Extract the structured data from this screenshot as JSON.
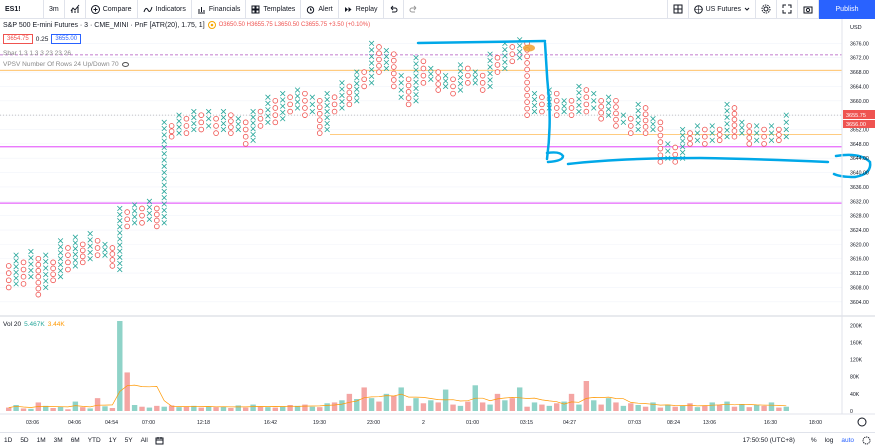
{
  "toolbar": {
    "symbol": "ES1!",
    "interval": "3m",
    "compare": "Compare",
    "indicators": "Indicators",
    "financials": "Financials",
    "templates": "Templates",
    "alert": "Alert",
    "replay": "Replay",
    "watchlist": "US Futures",
    "publish": "Publish"
  },
  "legend": {
    "title": "S&P 500 E-mini Futures · 3 · CME_MINI · PnF [ATR(20), 1.75, 1]",
    "ohlc": "O3650.50 H3655.75 L3650.50 C3655.75 +3.50 (+0.10%)",
    "bid": "3654.75",
    "spread": "0.25",
    "ask": "3655.00",
    "indicator1": "Sbar 1.3 1.3 3 23 23 26",
    "indicator2": "VPSV Number Of Rows 24 Up/Down 70",
    "volume_label": "Vol 20",
    "volume_val1": "5.467K",
    "volume_val2": "3.44K"
  },
  "price_axis": {
    "currency": "USD",
    "ticks": [
      "3676.00",
      "3672.00",
      "3668.00",
      "3664.00",
      "3660.00",
      "3656.00",
      "3652.00",
      "3648.00",
      "3644.00",
      "3640.00",
      "3636.00",
      "3632.00",
      "3628.00",
      "3624.00",
      "3620.00",
      "3616.00",
      "3612.00",
      "3608.00",
      "3604.00"
    ],
    "current_price": "3655.75",
    "tag2": "3655.00",
    "tag3": "3656.00"
  },
  "volume_axis": {
    "ticks": [
      "200K",
      "160K",
      "120K",
      "80K",
      "40K",
      "0"
    ]
  },
  "time_axis": {
    "ticks": [
      "03:06",
      "04:06",
      "04:54",
      "07:00",
      "12:18",
      "16:42",
      "19:30",
      "23:00",
      "2",
      "01:00",
      "03:15",
      "04:27",
      "07:03",
      "08:24",
      "13:06",
      "16:30",
      "18:00"
    ]
  },
  "bottom": {
    "ranges": [
      "1D",
      "5D",
      "1M",
      "3M",
      "6M",
      "YTD",
      "1Y",
      "5Y",
      "All"
    ],
    "clock": "17:50:50 (UTC+8)",
    "percent": "%",
    "log": "log",
    "auto": "auto"
  },
  "colors": {
    "up": "#26a69a",
    "down": "#ef5350",
    "accent": "#2962ff",
    "annotation": "#00a8e8"
  },
  "chart_data": {
    "type": "point-and-figure",
    "title": "S&P 500 E-mini Futures · 3 · CME_MINI · PnF [ATR(20), 1.75, 1]",
    "ylim": [
      3602,
      3680
    ],
    "box_size": 1.75,
    "columns": [
      {
        "type": "O",
        "hi": 3614,
        "lo": 3608
      },
      {
        "type": "X",
        "hi": 3617,
        "lo": 3609
      },
      {
        "type": "O",
        "hi": 3615,
        "lo": 3609
      },
      {
        "type": "X",
        "hi": 3618,
        "lo": 3611
      },
      {
        "type": "O",
        "hi": 3616,
        "lo": 3606
      },
      {
        "type": "X",
        "hi": 3617,
        "lo": 3608
      },
      {
        "type": "O",
        "hi": 3615,
        "lo": 3610
      },
      {
        "type": "X",
        "hi": 3621,
        "lo": 3611
      },
      {
        "type": "O",
        "hi": 3619,
        "lo": 3613
      },
      {
        "type": "X",
        "hi": 3622,
        "lo": 3614
      },
      {
        "type": "O",
        "hi": 3620,
        "lo": 3615
      },
      {
        "type": "X",
        "hi": 3623,
        "lo": 3616
      },
      {
        "type": "O",
        "hi": 3621,
        "lo": 3617
      },
      {
        "type": "X",
        "hi": 3620,
        "lo": 3617
      },
      {
        "type": "O",
        "hi": 3619,
        "lo": 3614
      },
      {
        "type": "X",
        "hi": 3630,
        "lo": 3613
      },
      {
        "type": "O",
        "hi": 3629,
        "lo": 3625
      },
      {
        "type": "X",
        "hi": 3631,
        "lo": 3626
      },
      {
        "type": "O",
        "hi": 3630,
        "lo": 3626
      },
      {
        "type": "X",
        "hi": 3632,
        "lo": 3627
      },
      {
        "type": "O",
        "hi": 3630,
        "lo": 3625
      },
      {
        "type": "X",
        "hi": 3654,
        "lo": 3626
      },
      {
        "type": "O",
        "hi": 3653,
        "lo": 3650
      },
      {
        "type": "X",
        "hi": 3656,
        "lo": 3651
      },
      {
        "type": "O",
        "hi": 3655,
        "lo": 3651
      },
      {
        "type": "X",
        "hi": 3657,
        "lo": 3652
      },
      {
        "type": "O",
        "hi": 3656,
        "lo": 3652
      },
      {
        "type": "X",
        "hi": 3657,
        "lo": 3653
      },
      {
        "type": "O",
        "hi": 3655,
        "lo": 3651
      },
      {
        "type": "X",
        "hi": 3657,
        "lo": 3652
      },
      {
        "type": "O",
        "hi": 3656,
        "lo": 3651
      },
      {
        "type": "X",
        "hi": 3655,
        "lo": 3652
      },
      {
        "type": "O",
        "hi": 3654,
        "lo": 3648
      },
      {
        "type": "X",
        "hi": 3657,
        "lo": 3649
      },
      {
        "type": "O",
        "hi": 3657,
        "lo": 3653
      },
      {
        "type": "X",
        "hi": 3661,
        "lo": 3654
      },
      {
        "type": "O",
        "hi": 3660,
        "lo": 3654
      },
      {
        "type": "X",
        "hi": 3662,
        "lo": 3655
      },
      {
        "type": "O",
        "hi": 3661,
        "lo": 3657
      },
      {
        "type": "X",
        "hi": 3663,
        "lo": 3658
      },
      {
        "type": "O",
        "hi": 3662,
        "lo": 3656
      },
      {
        "type": "X",
        "hi": 3661,
        "lo": 3657
      },
      {
        "type": "O",
        "hi": 3660,
        "lo": 3651
      },
      {
        "type": "X",
        "hi": 3662,
        "lo": 3652
      },
      {
        "type": "O",
        "hi": 3661,
        "lo": 3657
      },
      {
        "type": "X",
        "hi": 3665,
        "lo": 3658
      },
      {
        "type": "O",
        "hi": 3664,
        "lo": 3659
      },
      {
        "type": "X",
        "hi": 3668,
        "lo": 3660
      },
      {
        "type": "O",
        "hi": 3668,
        "lo": 3664
      },
      {
        "type": "X",
        "hi": 3676,
        "lo": 3665
      },
      {
        "type": "O",
        "hi": 3675,
        "lo": 3668
      },
      {
        "type": "X",
        "hi": 3674,
        "lo": 3669
      },
      {
        "type": "O",
        "hi": 3673,
        "lo": 3664
      },
      {
        "type": "X",
        "hi": 3667,
        "lo": 3661
      },
      {
        "type": "O",
        "hi": 3666,
        "lo": 3659
      },
      {
        "type": "X",
        "hi": 3672,
        "lo": 3660
      },
      {
        "type": "O",
        "hi": 3671,
        "lo": 3665
      },
      {
        "type": "X",
        "hi": 3669,
        "lo": 3666
      },
      {
        "type": "O",
        "hi": 3668,
        "lo": 3663
      },
      {
        "type": "X",
        "hi": 3667,
        "lo": 3664
      },
      {
        "type": "O",
        "hi": 3666,
        "lo": 3662
      },
      {
        "type": "X",
        "hi": 3670,
        "lo": 3663
      },
      {
        "type": "O",
        "hi": 3669,
        "lo": 3665
      },
      {
        "type": "X",
        "hi": 3668,
        "lo": 3665
      },
      {
        "type": "O",
        "hi": 3667,
        "lo": 3663
      },
      {
        "type": "X",
        "hi": 3673,
        "lo": 3664
      },
      {
        "type": "O",
        "hi": 3672,
        "lo": 3668
      },
      {
        "type": "X",
        "hi": 3676,
        "lo": 3669
      },
      {
        "type": "O",
        "hi": 3675,
        "lo": 3671
      },
      {
        "type": "X",
        "hi": 3677,
        "lo": 3672
      },
      {
        "type": "O",
        "hi": 3676,
        "lo": 3656
      },
      {
        "type": "X",
        "hi": 3662,
        "lo": 3657
      },
      {
        "type": "O",
        "hi": 3661,
        "lo": 3657
      },
      {
        "type": "X",
        "hi": 3663,
        "lo": 3658
      },
      {
        "type": "O",
        "hi": 3662,
        "lo": 3656
      },
      {
        "type": "X",
        "hi": 3660,
        "lo": 3657
      },
      {
        "type": "O",
        "hi": 3660,
        "lo": 3656
      },
      {
        "type": "X",
        "hi": 3664,
        "lo": 3657
      },
      {
        "type": "O",
        "hi": 3663,
        "lo": 3657
      },
      {
        "type": "X",
        "hi": 3662,
        "lo": 3658
      },
      {
        "type": "O",
        "hi": 3660,
        "lo": 3655
      },
      {
        "type": "X",
        "hi": 3661,
        "lo": 3656
      },
      {
        "type": "O",
        "hi": 3660,
        "lo": 3653
      },
      {
        "type": "X",
        "hi": 3656,
        "lo": 3654
      },
      {
        "type": "O",
        "hi": 3655,
        "lo": 3651
      },
      {
        "type": "X",
        "hi": 3659,
        "lo": 3652
      },
      {
        "type": "O",
        "hi": 3658,
        "lo": 3651
      },
      {
        "type": "X",
        "hi": 3655,
        "lo": 3652
      },
      {
        "type": "O",
        "hi": 3654,
        "lo": 3643
      },
      {
        "type": "X",
        "hi": 3648,
        "lo": 3644
      },
      {
        "type": "O",
        "hi": 3647,
        "lo": 3643
      },
      {
        "type": "X",
        "hi": 3652,
        "lo": 3644
      },
      {
        "type": "O",
        "hi": 3651,
        "lo": 3648
      },
      {
        "type": "X",
        "hi": 3653,
        "lo": 3649
      },
      {
        "type": "O",
        "hi": 3652,
        "lo": 3648
      },
      {
        "type": "X",
        "hi": 3653,
        "lo": 3649
      },
      {
        "type": "O",
        "hi": 3652,
        "lo": 3649
      },
      {
        "type": "X",
        "hi": 3659,
        "lo": 3650
      },
      {
        "type": "O",
        "hi": 3658,
        "lo": 3650
      },
      {
        "type": "X",
        "hi": 3654,
        "lo": 3651
      },
      {
        "type": "O",
        "hi": 3653,
        "lo": 3648
      },
      {
        "type": "X",
        "hi": 3653,
        "lo": 3649
      },
      {
        "type": "O",
        "hi": 3652,
        "lo": 3648
      },
      {
        "type": "X",
        "hi": 3653,
        "lo": 3649
      },
      {
        "type": "O",
        "hi": 3652,
        "lo": 3649
      },
      {
        "type": "X",
        "hi": 3656,
        "lo": 3650
      }
    ],
    "volumes": [
      8,
      14,
      6,
      5,
      20,
      12,
      7,
      10,
      4,
      22,
      9,
      6,
      30,
      11,
      7,
      210,
      90,
      14,
      10,
      8,
      12,
      10,
      13,
      9,
      10,
      12,
      8,
      11,
      9,
      10,
      7,
      13,
      8,
      15,
      10,
      9,
      8,
      11,
      14,
      12,
      15,
      10,
      9,
      18,
      20,
      25,
      40,
      28,
      55,
      30,
      22,
      40,
      35,
      55,
      12,
      30,
      18,
      25,
      20,
      50,
      15,
      12,
      22,
      60,
      20,
      15,
      40,
      25,
      30,
      55,
      10,
      20,
      15,
      12,
      18,
      22,
      40,
      15,
      70,
      25,
      15,
      30,
      20,
      12,
      18,
      14,
      10,
      20,
      8,
      15,
      10,
      12,
      18,
      9,
      12,
      20,
      14,
      22,
      10,
      16,
      9,
      14,
      12,
      20,
      8,
      10
    ],
    "horizontal_levels": [
      3672.8,
      3668.5,
      3647.2,
      3631.5,
      3656,
      3650.6
    ]
  }
}
